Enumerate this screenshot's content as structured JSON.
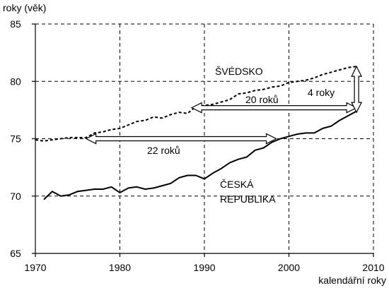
{
  "chart_data": {
    "type": "line",
    "ylabel": "roky (věk)",
    "xlabel": "kalendářní roky",
    "xlim": [
      1970,
      2010
    ],
    "ylim": [
      65,
      85
    ],
    "xticks": [
      1970,
      1980,
      1990,
      2000,
      2010
    ],
    "yticks": [
      65,
      70,
      75,
      80,
      85
    ],
    "grid": true,
    "series": [
      {
        "name": "ŠVÉDSKO",
        "style": "dashed",
        "x": [
          1970,
          1971,
          1972,
          1973,
          1974,
          1975,
          1976,
          1977,
          1978,
          1979,
          1980,
          1981,
          1982,
          1983,
          1984,
          1985,
          1986,
          1987,
          1988,
          1989,
          1990,
          1991,
          1992,
          1993,
          1994,
          1995,
          1996,
          1997,
          1998,
          1999,
          2000,
          2001,
          2002,
          2003,
          2004,
          2005,
          2006,
          2007,
          2008
        ],
        "values": [
          74.9,
          74.8,
          74.9,
          75.0,
          75.1,
          75.1,
          75.1,
          75.5,
          75.6,
          75.8,
          75.9,
          76.2,
          76.5,
          76.6,
          76.9,
          76.8,
          77.1,
          77.3,
          77.2,
          77.8,
          77.9,
          78.0,
          78.2,
          78.4,
          78.9,
          79.0,
          79.2,
          79.3,
          79.5,
          79.6,
          79.9,
          80.0,
          80.1,
          80.3,
          80.6,
          80.8,
          81.0,
          81.2,
          81.3
        ]
      },
      {
        "name": "ČESKÁ REPUBLIKA",
        "style": "solid",
        "x": [
          1971,
          1972,
          1973,
          1974,
          1975,
          1976,
          1977,
          1978,
          1979,
          1980,
          1981,
          1982,
          1983,
          1984,
          1985,
          1986,
          1987,
          1988,
          1989,
          1990,
          1991,
          1992,
          1993,
          1994,
          1995,
          1996,
          1997,
          1998,
          1999,
          2000,
          2001,
          2002,
          2003,
          2004,
          2005,
          2006,
          2007,
          2008
        ],
        "values": [
          69.7,
          70.4,
          70.0,
          70.1,
          70.4,
          70.5,
          70.6,
          70.6,
          70.8,
          70.3,
          70.7,
          70.8,
          70.6,
          70.7,
          70.9,
          71.1,
          71.6,
          71.8,
          71.8,
          71.5,
          72.0,
          72.4,
          72.9,
          73.2,
          73.4,
          74.0,
          74.2,
          74.7,
          75.0,
          75.2,
          75.4,
          75.5,
          75.5,
          75.9,
          76.1,
          76.6,
          77.0,
          77.4
        ]
      }
    ],
    "annotations": [
      {
        "text": "20 roků",
        "arrow_x": [
          1988.5,
          2008
        ],
        "arrow_y": 77.7
      },
      {
        "text": "22 roků",
        "arrow_x": [
          1976,
          1998.5
        ],
        "arrow_y": 75.0
      },
      {
        "text": "4 roky",
        "arrow_x": 2008,
        "arrow_y": [
          77.3,
          81.3
        ]
      }
    ]
  }
}
